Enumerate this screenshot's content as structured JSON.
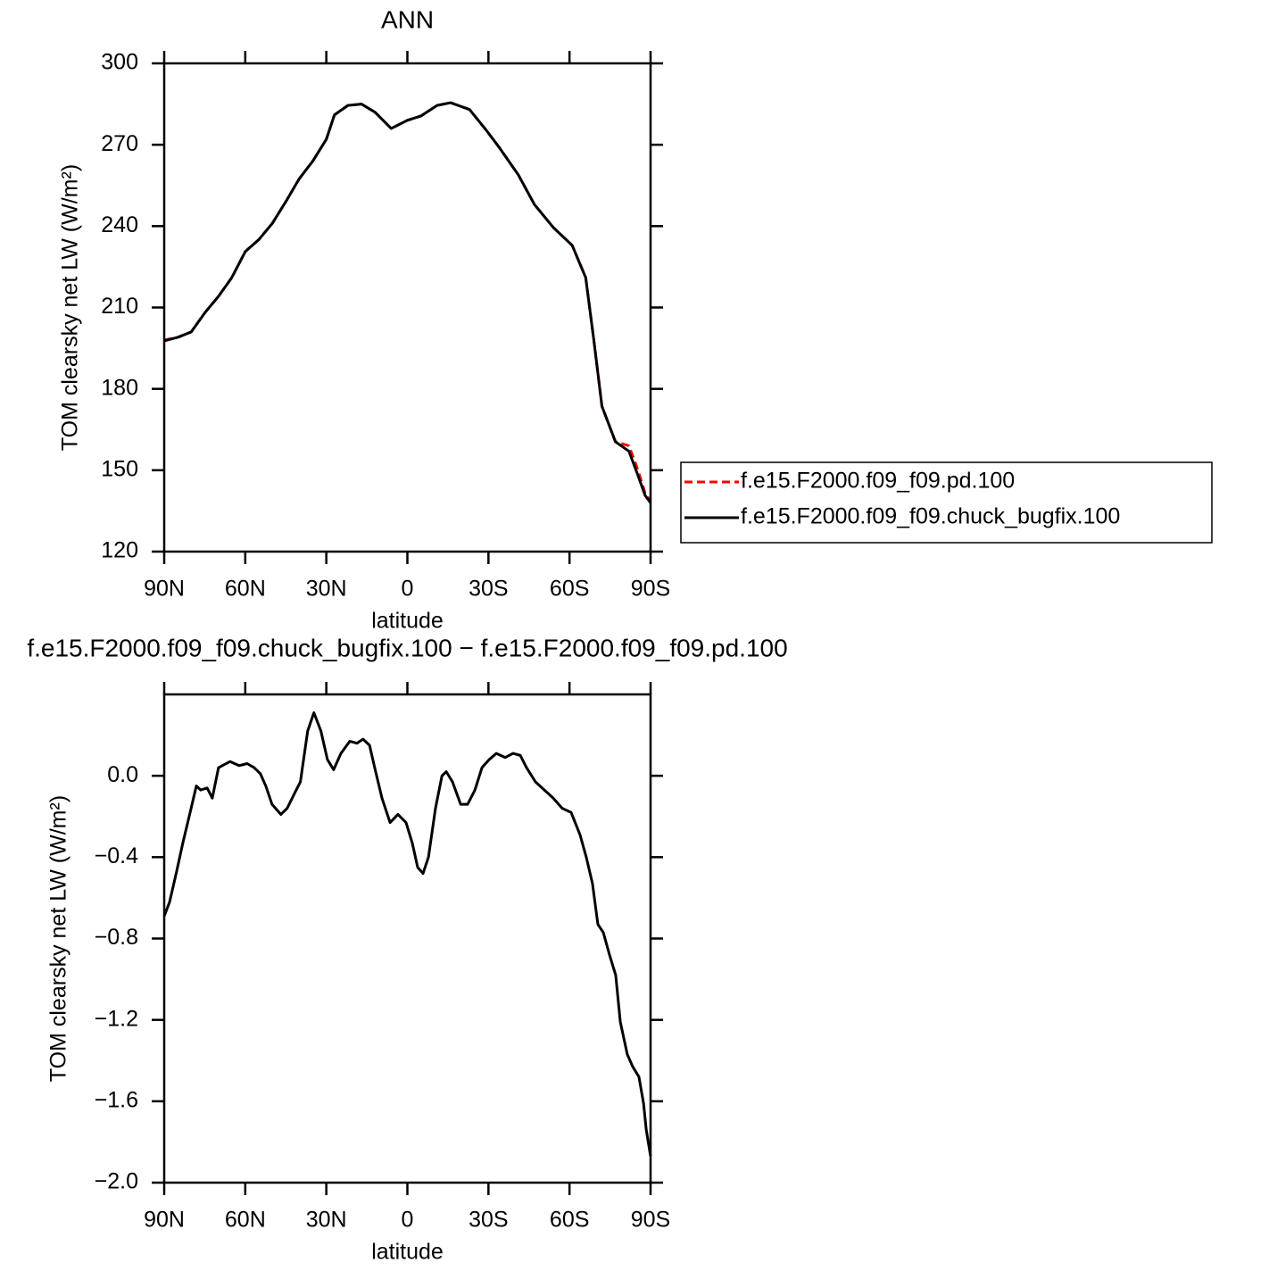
{
  "chart_data": [
    {
      "type": "line",
      "title": "ANN",
      "x_label": "latitude",
      "y_label": "TOM clearsky net LW (W/m²)",
      "x": [
        90,
        85,
        80,
        75,
        70,
        65,
        60,
        55,
        50,
        45,
        40,
        35,
        30,
        27,
        22,
        17,
        12,
        6,
        0,
        -5,
        -11,
        -16,
        -23,
        -29,
        -34,
        -41,
        -47,
        -54,
        -61,
        -66,
        -69,
        -72,
        -77,
        -82,
        -85,
        -88,
        -90
      ],
      "series": [
        {
          "name": "f.e15.F2000.f09_f09.pd.100",
          "color": "#ff0000",
          "linestyle": "dashed",
          "values": [
            198,
            199,
            201,
            208,
            214,
            221,
            230.6,
            235,
            241,
            249,
            257.5,
            264,
            272,
            281,
            284.5,
            285,
            282,
            276,
            279,
            280.6,
            284.5,
            285.5,
            283,
            275.6,
            269,
            259,
            248,
            239.5,
            232.9,
            221,
            198,
            173.6,
            160.5,
            159,
            151,
            141.5,
            138.5
          ]
        },
        {
          "name": "f.e15.F2000.f09_f09.chuck_bugfix.100",
          "color": "#000000",
          "linestyle": "solid",
          "values": [
            197.7,
            199,
            201,
            208,
            214,
            221,
            230.6,
            235,
            241,
            249,
            257.5,
            264,
            272,
            281,
            284.5,
            285,
            282,
            276,
            279,
            280.6,
            284.5,
            285.5,
            283,
            275.6,
            269,
            259,
            248,
            239.5,
            232.9,
            221,
            198,
            173.6,
            160.5,
            157,
            149,
            140.7,
            138
          ]
        }
      ],
      "xlim": [
        90,
        -90
      ],
      "xticks": [
        {
          "value": 90,
          "label": "90N"
        },
        {
          "value": 60,
          "label": "60N"
        },
        {
          "value": 30,
          "label": "30N"
        },
        0,
        {
          "value": -30,
          "label": "30S"
        },
        {
          "value": -60,
          "label": "60S"
        },
        {
          "value": -90,
          "label": "90S"
        }
      ],
      "ylim": [
        120,
        300
      ],
      "yticks": [
        120,
        150,
        180,
        210,
        240,
        270,
        300
      ],
      "legend": "right"
    },
    {
      "type": "line",
      "title": "f.e15.F2000.f09_f09.chuck_bugfix.100 − f.e15.F2000.f09_f09.pd.100",
      "x_label": "latitude",
      "y_label": "TOM clearsky net LW (W/m²)",
      "x": [
        90,
        88,
        85.4,
        83.1,
        80.4,
        78.1,
        76.5,
        74.1,
        72.2,
        69.9,
        65.6,
        62.3,
        59.3,
        56.7,
        54.4,
        52.4,
        50.1,
        46.8,
        44.5,
        41.9,
        39.6,
        36.9,
        34.6,
        32,
        29.6,
        27.3,
        24.6,
        21.3,
        18.7,
        16.4,
        14,
        12.1,
        9.4,
        6.4,
        3.5,
        0.5,
        -1.8,
        -3.8,
        -5.8,
        -7.8,
        -10.4,
        -12.8,
        -14.4,
        -16.7,
        -19.7,
        -22.3,
        -25,
        -27.6,
        -30.3,
        -32.9,
        -36.2,
        -39.1,
        -41.8,
        -44.1,
        -47.4,
        -50.7,
        -54,
        -57.3,
        -60.6,
        -63.9,
        -66.2,
        -68.5,
        -70.5,
        -72.5,
        -74.8,
        -77.1,
        -78.8,
        -81.4,
        -83.4,
        -85.7,
        -87.4,
        -88.4,
        -90
      ],
      "series": [
        {
          "color": "#000000",
          "linestyle": "solid",
          "values": [
            -0.69,
            -0.62,
            -0.47,
            -0.33,
            -0.18,
            -0.05,
            -0.07,
            -0.06,
            -0.11,
            0.04,
            0.07,
            0.05,
            0.06,
            0.04,
            0.01,
            -0.05,
            -0.14,
            -0.19,
            -0.16,
            -0.09,
            -0.03,
            0.22,
            0.31,
            0.22,
            0.08,
            0.03,
            0.11,
            0.17,
            0.16,
            0.18,
            0.15,
            0.04,
            -0.11,
            -0.23,
            -0.19,
            -0.23,
            -0.33,
            -0.45,
            -0.48,
            -0.4,
            -0.16,
            0,
            0.02,
            -0.03,
            -0.14,
            -0.14,
            -0.07,
            0.04,
            0.08,
            0.11,
            0.09,
            0.11,
            0.1,
            0.04,
            -0.03,
            -0.07,
            -0.11,
            -0.16,
            -0.18,
            -0.29,
            -0.4,
            -0.53,
            -0.73,
            -0.77,
            -0.88,
            -0.98,
            -1.21,
            -1.37,
            -1.43,
            -1.48,
            -1.61,
            -1.74,
            -1.87
          ]
        }
      ],
      "xlim": [
        90,
        -90
      ],
      "xticks": [
        {
          "value": 90,
          "label": "90N"
        },
        {
          "value": 60,
          "label": "60N"
        },
        {
          "value": 30,
          "label": "30N"
        },
        0,
        {
          "value": -30,
          "label": "30S"
        },
        {
          "value": -60,
          "label": "60S"
        },
        {
          "value": -90,
          "label": "90S"
        }
      ],
      "ylim": [
        -2.0,
        0.4
      ],
      "yticks": [
        {
          "value": -2,
          "label": "−2.0"
        },
        {
          "value": -1.6,
          "label": "−1.6"
        },
        {
          "value": -1.2,
          "label": "−1.2"
        },
        {
          "value": -0.8,
          "label": "−0.8"
        },
        {
          "value": -0.4,
          "label": "−0.4"
        },
        {
          "value": 0,
          "label": "0.0"
        }
      ]
    }
  ]
}
